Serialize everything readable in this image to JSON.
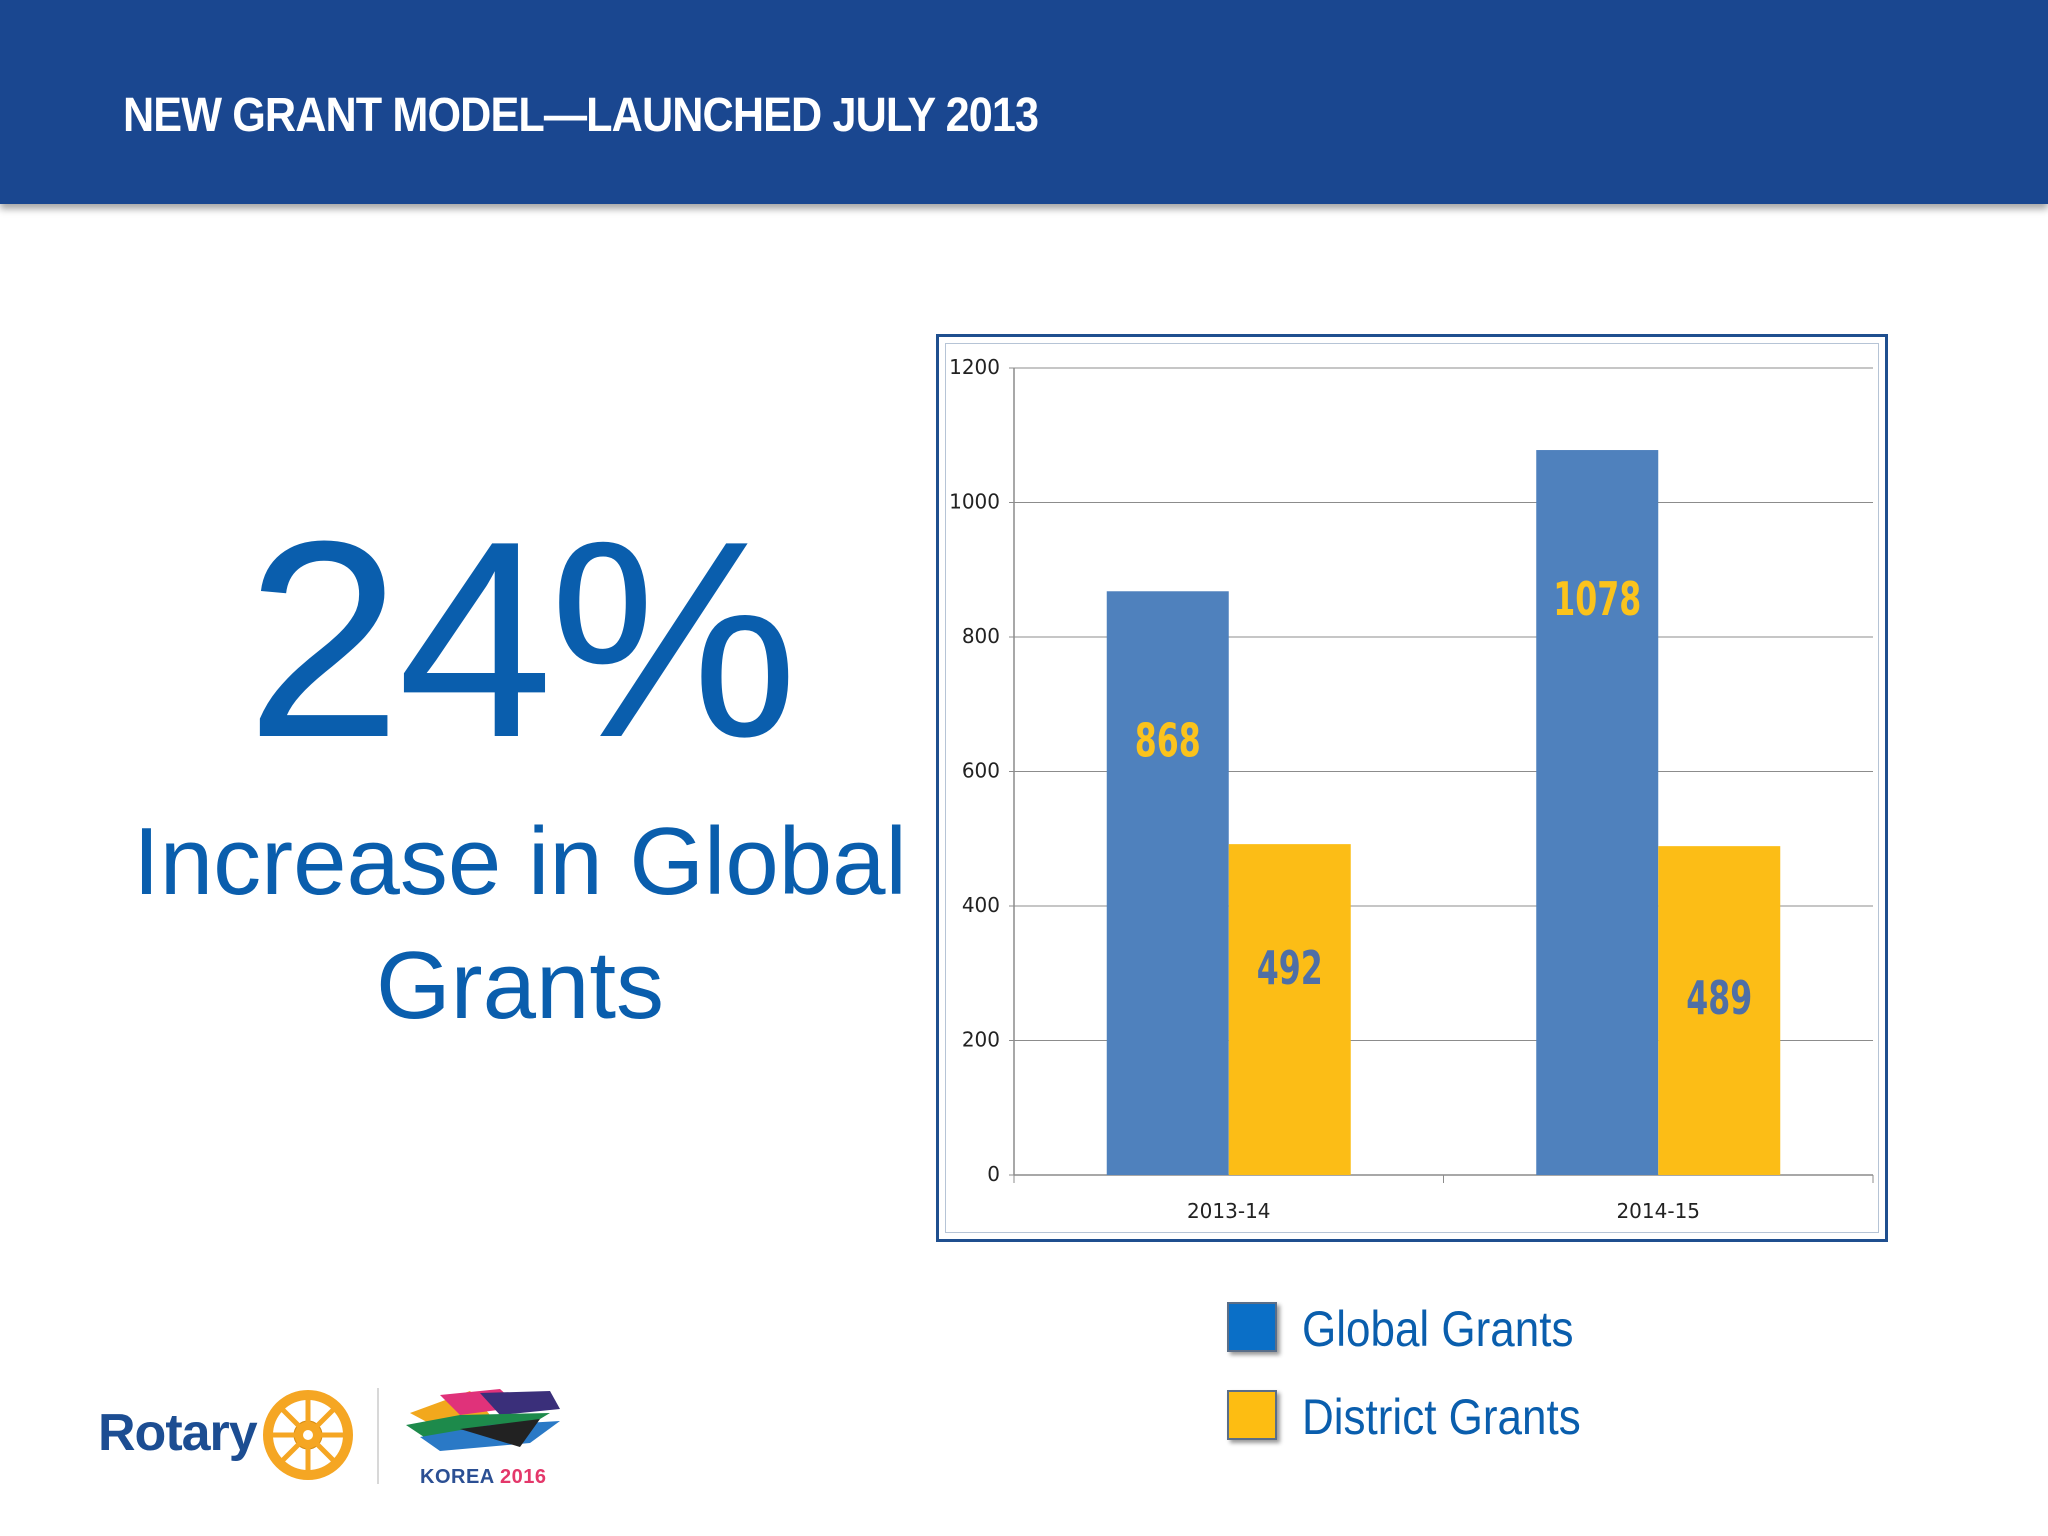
{
  "slide": {
    "title": "NEW GRANT MODEL—LAUNCHED JULY 2013",
    "stat_value": "24%",
    "stat_label": "Increase in Global Grants"
  },
  "legend": [
    {
      "label": "Global Grants",
      "color": "#0a6fc7"
    },
    {
      "label": "District Grants",
      "color": "#fdbd12"
    }
  ],
  "logos": {
    "rotary": "Rotary",
    "korea_text": "KOREA",
    "korea_year": "2016"
  },
  "colors": {
    "header_bg": "#1a4790",
    "accent_blue": "#0a5ead",
    "bar_global": "#4f81bd",
    "bar_district": "#fcbd16",
    "label_on_blue": "#fbc31c",
    "label_on_gold": "#4f6fa6"
  },
  "chart_data": {
    "type": "bar",
    "categories": [
      "2013-14",
      "2014-15"
    ],
    "series": [
      {
        "name": "Global Grants",
        "values": [
          868,
          1078
        ]
      },
      {
        "name": "District Grants",
        "values": [
          492,
          489
        ]
      }
    ],
    "data_labels": [
      [
        "868",
        "1078"
      ],
      [
        "492",
        "489"
      ]
    ],
    "ylim": [
      0,
      1200
    ],
    "yticks": [
      0,
      200,
      400,
      600,
      800,
      1000,
      1200
    ],
    "title": "",
    "xlabel": "",
    "ylabel": "",
    "grid": true,
    "legend_position": "bottom"
  }
}
